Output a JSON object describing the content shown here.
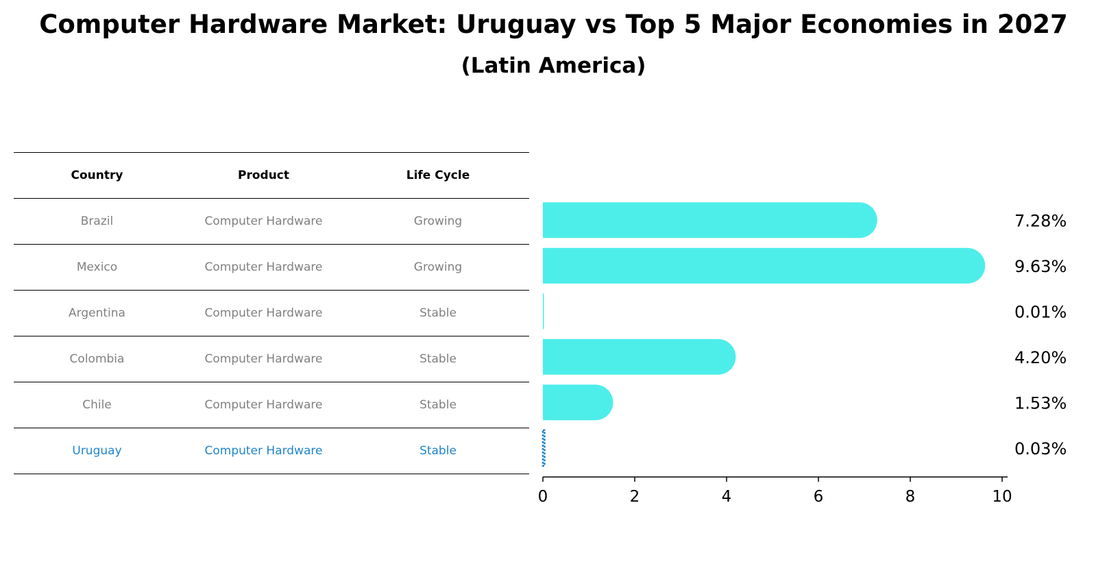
{
  "chart_data": {
    "type": "bar",
    "orientation": "horizontal",
    "title": "Computer Hardware Market: Uruguay vs Top 5 Major Economies in 2027",
    "subtitle": "(Latin America)",
    "categories": [
      "Brazil",
      "Mexico",
      "Argentina",
      "Colombia",
      "Chile",
      "Uruguay"
    ],
    "values": [
      7.28,
      9.63,
      0.01,
      4.2,
      1.53,
      0.03
    ],
    "value_labels": [
      "7.28%",
      "9.63%",
      "0.01%",
      "4.20%",
      "1.53%",
      "0.03%"
    ],
    "xlim": [
      0,
      10
    ],
    "xticks": [
      0,
      2,
      4,
      6,
      8,
      10
    ],
    "xtick_labels": [
      "0",
      "2",
      "4",
      "6",
      "8",
      "10"
    ],
    "highlight_category": "Uruguay",
    "colors": {
      "bar": "#4deeea",
      "highlight_bar": "#1f86cc",
      "highlight_text": "#1f86cc",
      "muted_text": "#808080"
    },
    "table": {
      "headers": [
        "Country",
        "Product",
        "Life Cycle"
      ],
      "rows": [
        [
          "Brazil",
          "Computer Hardware",
          "Growing"
        ],
        [
          "Mexico",
          "Computer Hardware",
          "Growing"
        ],
        [
          "Argentina",
          "Computer Hardware",
          "Stable"
        ],
        [
          "Colombia",
          "Computer Hardware",
          "Stable"
        ],
        [
          "Chile",
          "Computer Hardware",
          "Stable"
        ],
        [
          "Uruguay",
          "Computer Hardware",
          "Stable"
        ]
      ]
    }
  }
}
